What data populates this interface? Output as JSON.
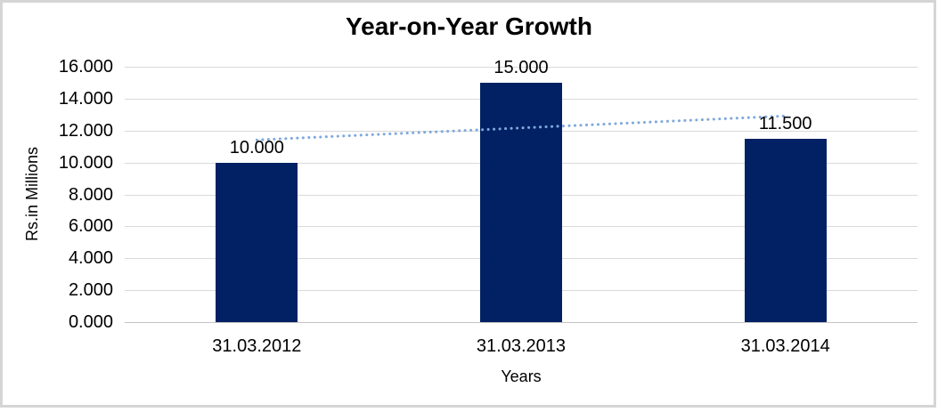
{
  "frame": {
    "background": "#ffffff",
    "border_color": "#d5d5d5"
  },
  "chart_data": {
    "type": "bar",
    "title": "Year-on-Year Growth",
    "xlabel": "Years",
    "ylabel": "Rs.in Millions",
    "categories": [
      "31.03.2012",
      "31.03.2013",
      "31.03.2014"
    ],
    "values": [
      10.0,
      15.0,
      11.5
    ],
    "data_labels": [
      "10.000",
      "15.000",
      "11.500"
    ],
    "y_tick_values": [
      0,
      2,
      4,
      6,
      8,
      10,
      12,
      14,
      16
    ],
    "y_tick_labels": [
      "0.000",
      "2.000",
      "4.000",
      "6.000",
      "8.000",
      "10.000",
      "12.000",
      "14.000",
      "16.000"
    ],
    "ylim": [
      0,
      16
    ],
    "grid": true,
    "legend": false,
    "bar_color": "#022164",
    "gridline_color": "#d9d9d9",
    "axis_line_color": "#c3c3c3",
    "text_color": "#000000",
    "trendline": {
      "type": "linear",
      "style": "dotted",
      "color": "#7fa8dc",
      "start_value": 11.417,
      "end_value": 12.917
    }
  }
}
